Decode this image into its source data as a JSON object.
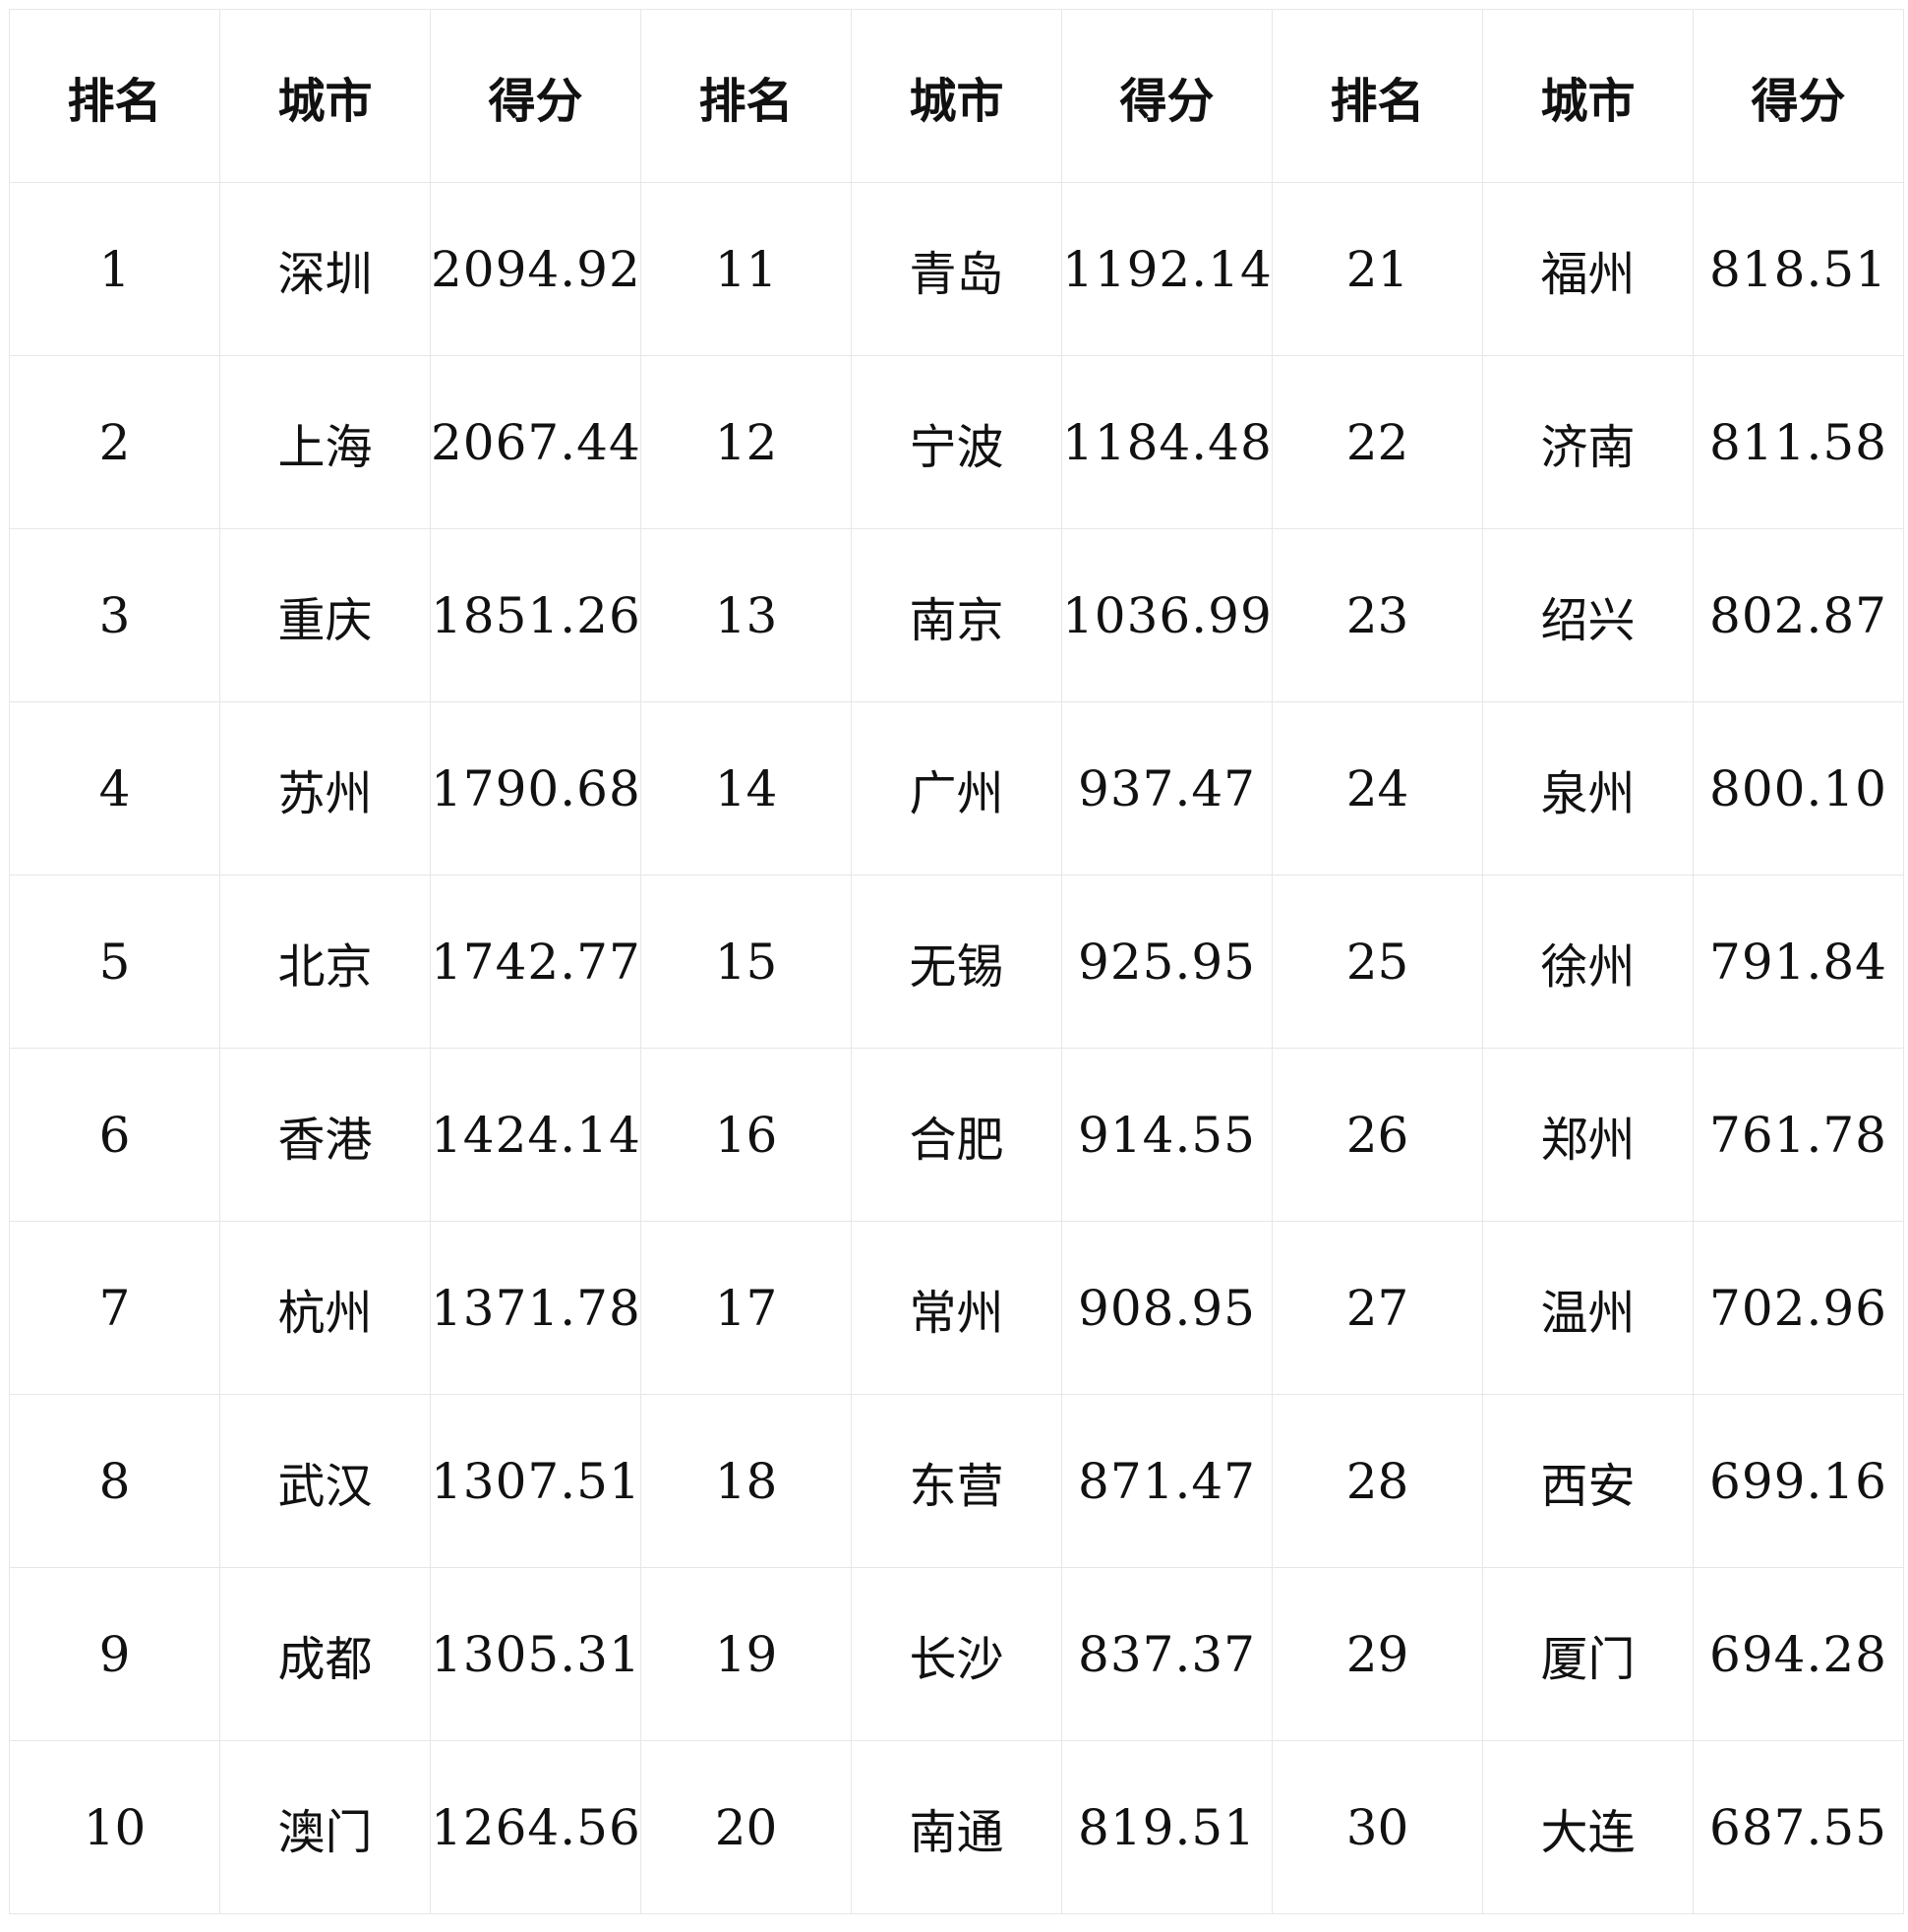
{
  "headers": [
    "排名",
    "城市",
    "得分",
    "排名",
    "城市",
    "得分",
    "排名",
    "城市",
    "得分"
  ],
  "rows": [
    [
      "1",
      "深圳",
      "2094.92",
      "11",
      "青岛",
      "1192.14",
      "21",
      "福州",
      "818.51"
    ],
    [
      "2",
      "上海",
      "2067.44",
      "12",
      "宁波",
      "1184.48",
      "22",
      "济南",
      "811.58"
    ],
    [
      "3",
      "重庆",
      "1851.26",
      "13",
      "南京",
      "1036.99",
      "23",
      "绍兴",
      "802.87"
    ],
    [
      "4",
      "苏州",
      "1790.68",
      "14",
      "广州",
      "937.47",
      "24",
      "泉州",
      "800.10"
    ],
    [
      "5",
      "北京",
      "1742.77",
      "15",
      "无锡",
      "925.95",
      "25",
      "徐州",
      "791.84"
    ],
    [
      "6",
      "香港",
      "1424.14",
      "16",
      "合肥",
      "914.55",
      "26",
      "郑州",
      "761.78"
    ],
    [
      "7",
      "杭州",
      "1371.78",
      "17",
      "常州",
      "908.95",
      "27",
      "温州",
      "702.96"
    ],
    [
      "8",
      "武汉",
      "1307.51",
      "18",
      "东营",
      "871.47",
      "28",
      "西安",
      "699.16"
    ],
    [
      "9",
      "成都",
      "1305.31",
      "19",
      "长沙",
      "837.37",
      "29",
      "厦门",
      "694.28"
    ],
    [
      "10",
      "澳门",
      "1264.56",
      "20",
      "南通",
      "819.51",
      "30",
      "大连",
      "687.55"
    ]
  ]
}
